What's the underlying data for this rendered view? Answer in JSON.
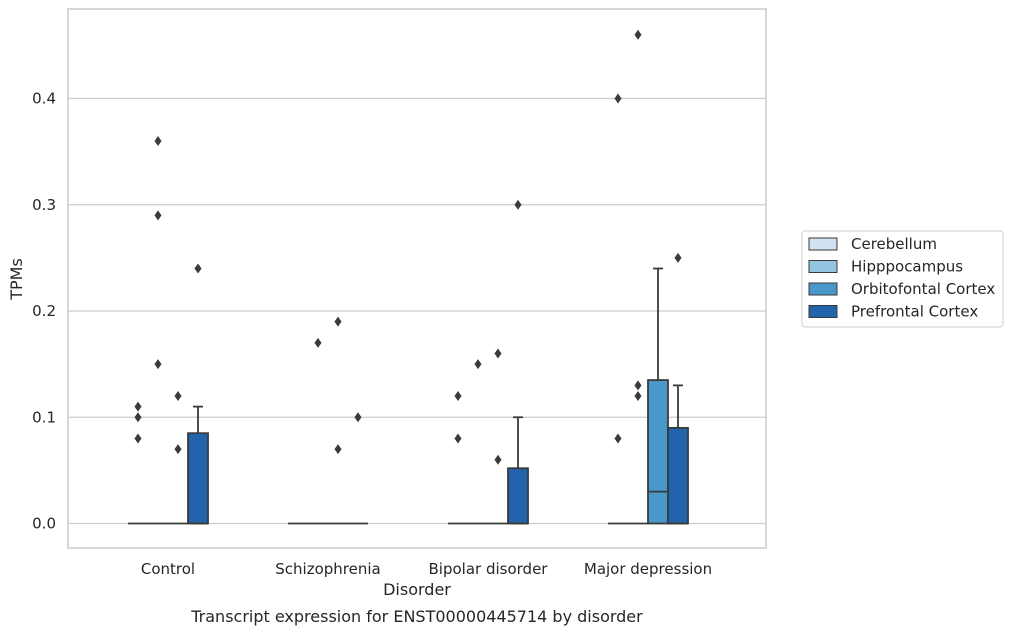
{
  "caption": "Transcript expression for ENST00000445714 by disorder",
  "chart_data": {
    "type": "box",
    "xlabel": "Disorder",
    "ylabel": "TPMs",
    "categories": [
      "Control",
      "Schizophrenia",
      "Bipolar disorder",
      "Major depression"
    ],
    "ylim": [
      -0.022,
      0.485
    ],
    "yticks": [
      0.0,
      0.1,
      0.2,
      0.3,
      0.4
    ],
    "ytick_labels": [
      "0.0",
      "0.1",
      "0.2",
      "0.3",
      "0.4"
    ],
    "grid": "horizontal",
    "legend_position": "right",
    "series": [
      {
        "name": "Cerebellum",
        "color": "#d0e1f2",
        "boxes": [
          {
            "category": "Control",
            "q1": 0.0,
            "median": 0.0,
            "q3": 0.0,
            "whisker_low": 0.0,
            "whisker_high": 0.0,
            "outliers": [
              0.08,
              0.1,
              0.11
            ]
          },
          {
            "category": "Schizophrenia",
            "q1": 0.0,
            "median": 0.0,
            "q3": 0.0,
            "whisker_low": 0.0,
            "whisker_high": 0.0,
            "outliers": []
          },
          {
            "category": "Bipolar disorder",
            "q1": 0.0,
            "median": 0.0,
            "q3": 0.0,
            "whisker_low": 0.0,
            "whisker_high": 0.0,
            "outliers": [
              0.08,
              0.12
            ]
          },
          {
            "category": "Major depression",
            "q1": 0.0,
            "median": 0.0,
            "q3": 0.0,
            "whisker_low": 0.0,
            "whisker_high": 0.0,
            "outliers": [
              0.08,
              0.4
            ]
          }
        ]
      },
      {
        "name": "Hipppocampus",
        "color": "#94c4df",
        "boxes": [
          {
            "category": "Control",
            "q1": 0.0,
            "median": 0.0,
            "q3": 0.0,
            "whisker_low": 0.0,
            "whisker_high": 0.0,
            "outliers": [
              0.15,
              0.29,
              0.36
            ]
          },
          {
            "category": "Schizophrenia",
            "q1": 0.0,
            "median": 0.0,
            "q3": 0.0,
            "whisker_low": 0.0,
            "whisker_high": 0.0,
            "outliers": [
              0.17
            ]
          },
          {
            "category": "Bipolar disorder",
            "q1": 0.0,
            "median": 0.0,
            "q3": 0.0,
            "whisker_low": 0.0,
            "whisker_high": 0.0,
            "outliers": [
              0.15
            ]
          },
          {
            "category": "Major depression",
            "q1": 0.0,
            "median": 0.0,
            "q3": 0.0,
            "whisker_low": 0.0,
            "whisker_high": 0.0,
            "outliers": [
              0.12,
              0.13,
              0.46
            ]
          }
        ]
      },
      {
        "name": "Orbitofontal Cortex",
        "color": "#4a98c9",
        "boxes": [
          {
            "category": "Control",
            "q1": 0.0,
            "median": 0.0,
            "q3": 0.0,
            "whisker_low": 0.0,
            "whisker_high": 0.0,
            "outliers": [
              0.07,
              0.12
            ]
          },
          {
            "category": "Schizophrenia",
            "q1": 0.0,
            "median": 0.0,
            "q3": 0.0,
            "whisker_low": 0.0,
            "whisker_high": 0.0,
            "outliers": [
              0.07,
              0.19
            ]
          },
          {
            "category": "Bipolar disorder",
            "q1": 0.0,
            "median": 0.0,
            "q3": 0.0,
            "whisker_low": 0.0,
            "whisker_high": 0.0,
            "outliers": [
              0.06,
              0.16
            ]
          },
          {
            "category": "Major depression",
            "q1": 0.0,
            "median": 0.03,
            "q3": 0.135,
            "whisker_low": 0.0,
            "whisker_high": 0.24,
            "outliers": []
          }
        ]
      },
      {
        "name": "Prefrontal Cortex",
        "color": "#2164ab",
        "boxes": [
          {
            "category": "Control",
            "q1": 0.0,
            "median": 0.0,
            "q3": 0.085,
            "whisker_low": 0.0,
            "whisker_high": 0.11,
            "outliers": [
              0.24
            ]
          },
          {
            "category": "Schizophrenia",
            "q1": 0.0,
            "median": 0.0,
            "q3": 0.0,
            "whisker_low": 0.0,
            "whisker_high": 0.0,
            "outliers": [
              0.1
            ]
          },
          {
            "category": "Bipolar disorder",
            "q1": 0.0,
            "median": 0.0,
            "q3": 0.052,
            "whisker_low": 0.0,
            "whisker_high": 0.1,
            "outliers": [
              0.3
            ]
          },
          {
            "category": "Major depression",
            "q1": 0.0,
            "median": 0.0,
            "q3": 0.09,
            "whisker_low": 0.0,
            "whisker_high": 0.13,
            "outliers": [
              0.25
            ]
          }
        ]
      }
    ]
  }
}
